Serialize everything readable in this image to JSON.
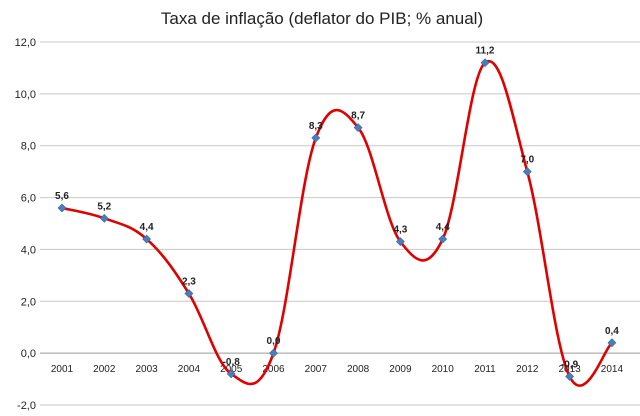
{
  "chart_data": {
    "type": "line",
    "title": "Taxa de inflação (deflator do PIB; % anual)",
    "xlabel": "",
    "ylabel": "",
    "categories": [
      "2001",
      "2002",
      "2003",
      "2004",
      "2005",
      "2006",
      "2007",
      "2008",
      "2009",
      "2010",
      "2011",
      "2012",
      "2013",
      "2014"
    ],
    "series": [
      {
        "values": [
          5.6,
          5.2,
          4.4,
          2.3,
          -0.8,
          0.0,
          8.3,
          8.7,
          4.3,
          4.4,
          11.2,
          7.0,
          -0.9,
          0.4
        ],
        "labels": [
          "5,6",
          "5,2",
          "4,4",
          "2,3",
          "-0,8",
          "0,0",
          "8,3",
          "8,7",
          "4,3",
          "4,4",
          "11,2",
          "7,0",
          "-0,9",
          "0,4"
        ],
        "line_color": "#e00000",
        "marker_color": "#4a7ebb",
        "marker": "diamond",
        "smooth": true
      }
    ],
    "ylim": [
      -2.0,
      12.0
    ],
    "yticks": [
      12.0,
      10.0,
      8.0,
      6.0,
      4.0,
      2.0,
      0.0,
      -2.0
    ],
    "ytick_labels": [
      "12,0",
      "10,0",
      "8,0",
      "6,0",
      "4,0",
      "2,0",
      "0,0",
      "-2,0"
    ],
    "grid": true,
    "x_axis_at": 0.0,
    "legend": "none"
  }
}
